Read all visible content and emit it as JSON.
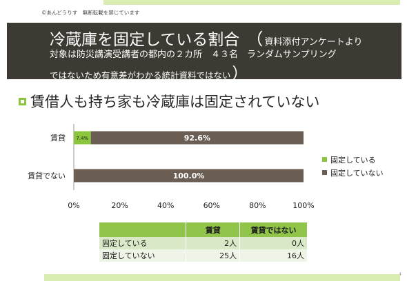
{
  "copyright": "©あんどうりす　無断転載を禁じています",
  "header": {
    "title": "冷蔵庫を固定している割合",
    "paren_open": "（",
    "note_line1": "資料添付アンケートより",
    "note_line2": "対象は防災講演受講者の都内の２カ所　４３名　ランダムサンプリング",
    "note_line3": "ではないため有意差がわかる統計資料ではない",
    "paren_close": "）"
  },
  "subheading": "賃借人も持ち家も冷蔵庫は固定されていない",
  "colors": {
    "header_bg": "#3d3a33",
    "accent_green": "#8cc63e",
    "fixed": "#8cc63e",
    "not_fixed": "#6b5f55",
    "table_header": "#90c44a"
  },
  "chart_data": {
    "type": "bar",
    "orientation": "horizontal",
    "stacked": "percent",
    "categories": [
      "賃貸",
      "賃貸でない"
    ],
    "series": [
      {
        "name": "固定している",
        "values": [
          7.4,
          0
        ],
        "labels": [
          "7.4%",
          ""
        ]
      },
      {
        "name": "固定していない",
        "values": [
          92.6,
          100
        ],
        "labels": [
          "92.6%",
          "100.0%"
        ]
      }
    ],
    "xlim": [
      0,
      100
    ],
    "xticks": [
      "0%",
      "20%",
      "40%",
      "60%",
      "80%",
      "100%"
    ],
    "legend_position": "right",
    "grid": false
  },
  "legend": [
    {
      "label": "固定している",
      "color": "#8cc63e"
    },
    {
      "label": "固定していない",
      "color": "#6b5f55"
    }
  ],
  "table": {
    "headers": [
      "",
      "賃貸",
      "賃貸ではない"
    ],
    "rows": [
      [
        "固定している",
        "2人",
        "0人"
      ],
      [
        "固定していない",
        "25人",
        "16人"
      ]
    ]
  },
  "page_number": "4"
}
